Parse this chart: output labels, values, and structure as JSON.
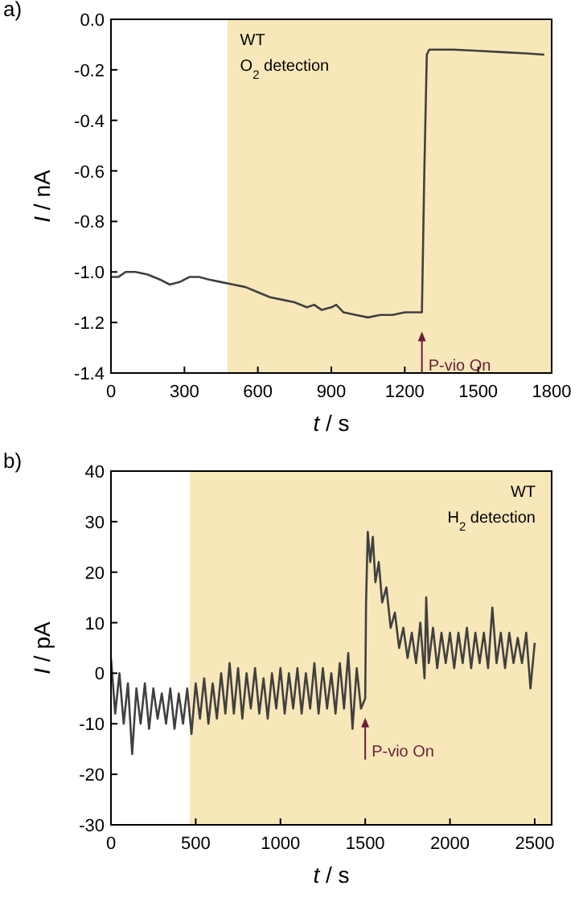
{
  "chart_data": [
    {
      "type": "line",
      "title": "a)",
      "xlabel": "t / s",
      "ylabel": "I / nA",
      "xlim": [
        0,
        1800
      ],
      "ylim": [
        -1.4,
        0
      ],
      "xticks": [
        0,
        300,
        600,
        900,
        1200,
        1500,
        1800
      ],
      "yticks": [
        {
          "value": -1.4,
          "label": "-1.4"
        },
        {
          "value": -1.2,
          "label": "-1.2"
        },
        {
          "value": -1,
          "label": "-1.0"
        },
        {
          "value": -0.8,
          "label": "-0.8"
        },
        {
          "value": -0.6,
          "label": "-0.6"
        },
        {
          "value": -0.4,
          "label": "-0.4"
        },
        {
          "value": -0.2,
          "label": "-0.2"
        },
        {
          "value": 0,
          "label": "0.0"
        }
      ],
      "grid": false,
      "marker": "none",
      "line_style": "solid",
      "bands": [
        {
          "axis": "x",
          "from": 475,
          "to": 1800,
          "color": "#f8e7b9"
        }
      ],
      "annotations": [
        "WT",
        "O$_{2}$ detection",
        {
          "text": "P-vio On",
          "x": 1270,
          "y": -1.16
        }
      ],
      "series": [
        {
          "color": "#404040",
          "x": [
            0,
            30,
            60,
            100,
            150,
            200,
            240,
            280,
            320,
            360,
            400,
            450,
            500,
            550,
            600,
            650,
            700,
            750,
            800,
            830,
            860,
            900,
            920,
            950,
            1000,
            1050,
            1100,
            1150,
            1200,
            1250,
            1270,
            1280,
            1290,
            1300,
            1400,
            1500,
            1600,
            1700,
            1770
          ],
          "values": [
            -1.02,
            -1.02,
            -1.0,
            -1.0,
            -1.01,
            -1.03,
            -1.05,
            -1.04,
            -1.02,
            -1.02,
            -1.03,
            -1.04,
            -1.05,
            -1.06,
            -1.08,
            -1.1,
            -1.11,
            -1.12,
            -1.14,
            -1.13,
            -1.15,
            -1.14,
            -1.13,
            -1.16,
            -1.17,
            -1.18,
            -1.17,
            -1.17,
            -1.16,
            -1.16,
            -1.16,
            -0.6,
            -0.14,
            -0.12,
            -0.12,
            -0.125,
            -0.13,
            -0.135,
            -0.14
          ]
        }
      ]
    },
    {
      "type": "line",
      "title": "b)",
      "xlabel": "t / s",
      "ylabel": "I / pA",
      "xlim": [
        0,
        2600
      ],
      "ylim": [
        -30,
        40
      ],
      "xticks": [
        0,
        500,
        1000,
        1500,
        2000,
        2500
      ],
      "yticks": [
        -30,
        -20,
        -10,
        0,
        10,
        20,
        30,
        40
      ],
      "grid": false,
      "marker": "none",
      "line_style": "solid",
      "bands": [
        {
          "axis": "x",
          "from": 465,
          "to": 2600,
          "color": "#f8e7b9"
        }
      ],
      "annotations": [
        "WT",
        "H$_{2}$ detection",
        {
          "text": "P-vio On",
          "x": 1500,
          "y": -5
        }
      ],
      "series": [
        {
          "color": "#404040",
          "x": [
            0,
            25,
            50,
            75,
            100,
            125,
            150,
            175,
            200,
            225,
            250,
            275,
            300,
            325,
            350,
            375,
            400,
            425,
            450,
            475,
            500,
            525,
            550,
            575,
            600,
            625,
            650,
            675,
            700,
            725,
            750,
            775,
            800,
            825,
            850,
            875,
            900,
            925,
            950,
            975,
            1000,
            1025,
            1050,
            1075,
            1100,
            1125,
            1150,
            1175,
            1200,
            1225,
            1250,
            1275,
            1300,
            1325,
            1350,
            1375,
            1400,
            1425,
            1450,
            1475,
            1500,
            1505,
            1515,
            1530,
            1545,
            1560,
            1580,
            1600,
            1625,
            1650,
            1675,
            1700,
            1725,
            1750,
            1775,
            1800,
            1825,
            1850,
            1860,
            1875,
            1900,
            1925,
            1950,
            1975,
            2000,
            2025,
            2050,
            2075,
            2100,
            2125,
            2150,
            2175,
            2200,
            2225,
            2250,
            2275,
            2300,
            2325,
            2350,
            2375,
            2400,
            2425,
            2450,
            2475,
            2500
          ],
          "values": [
            3,
            -8,
            0,
            -10,
            -2,
            -16,
            -3,
            -10,
            -2,
            -11,
            -3,
            -9,
            -4,
            -10,
            -3,
            -11,
            -4,
            -10,
            -3,
            -12,
            -2,
            -9,
            -1,
            -10,
            -2,
            -9,
            0,
            -8,
            2,
            -8,
            1,
            -9,
            0,
            -7,
            1,
            -8,
            -1,
            -9,
            0,
            -7,
            1,
            -8,
            0,
            -7,
            1,
            -8,
            0,
            -7,
            2,
            -8,
            1,
            -7,
            0,
            -8,
            2,
            -7,
            4,
            -11,
            1,
            -7,
            -5,
            14,
            28,
            22,
            27,
            18,
            22,
            14,
            17,
            9,
            12,
            5,
            9,
            3,
            8,
            2,
            10,
            -1,
            15,
            2,
            9,
            1,
            8,
            2,
            8,
            1,
            8,
            2,
            9,
            1,
            8,
            2,
            8,
            1,
            13,
            2,
            8,
            1,
            8,
            2,
            7,
            2,
            8,
            -3,
            6
          ]
        }
      ]
    }
  ]
}
